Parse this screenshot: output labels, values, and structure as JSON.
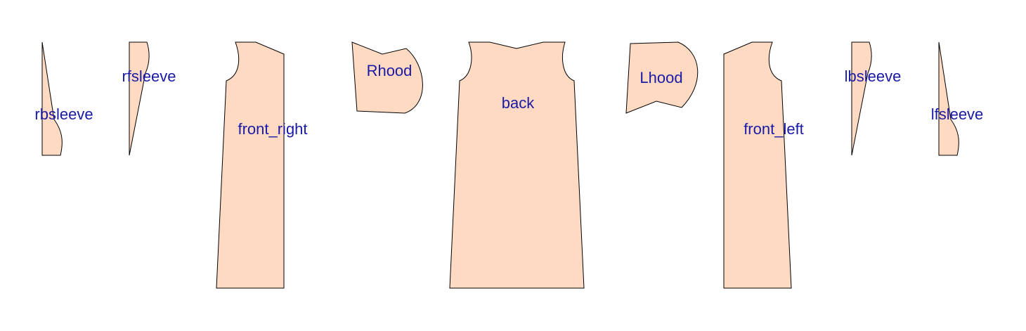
{
  "colors": {
    "background": "#ffffff",
    "piece_fill": "#ffdac3",
    "piece_stroke": "#000000",
    "label": "#1a1aa6"
  },
  "pieces": {
    "rbsleeve": "rbsleeve",
    "rfsleeve": "rfsleeve",
    "front_right": "front_right",
    "rhood": "Rhood",
    "back": "back",
    "lhood": "Lhood",
    "front_left": "front_left",
    "lbsleeve": "lbsleeve",
    "lfsleeve": "lfsleeve"
  }
}
